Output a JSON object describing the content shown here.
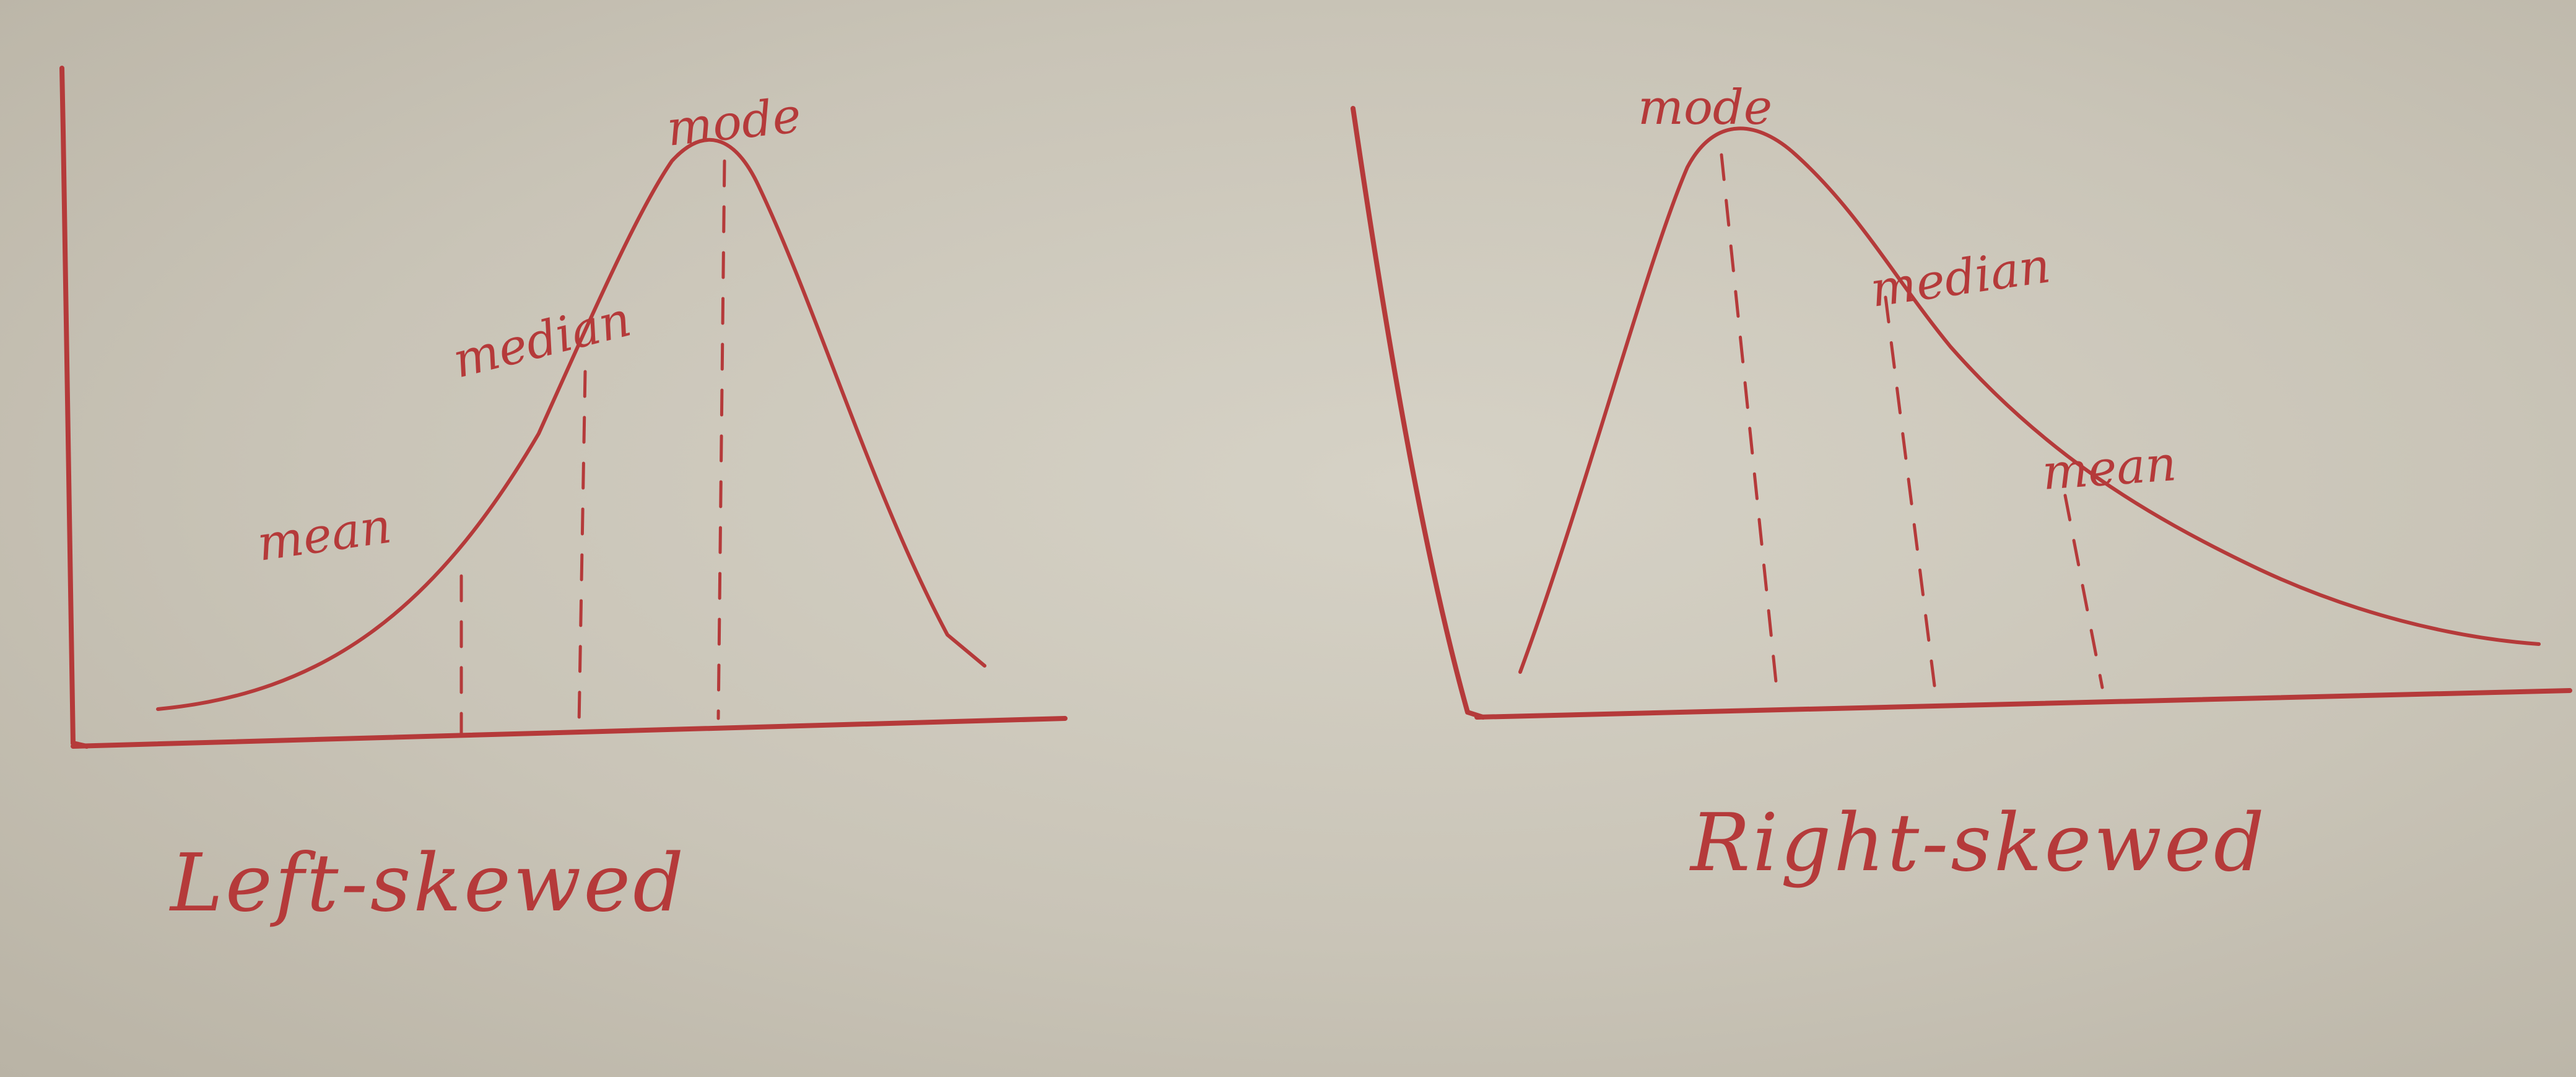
{
  "left_panel": {
    "title": "Left-skewed",
    "labels": {
      "mean": "mean",
      "median": "median",
      "mode": "mode"
    }
  },
  "right_panel": {
    "title": "Right-skewed",
    "labels": {
      "mode": "mode",
      "median": "median",
      "mean": "mean"
    }
  },
  "colors": {
    "ink": "#b53a3a",
    "paper": "#d2cec2"
  }
}
